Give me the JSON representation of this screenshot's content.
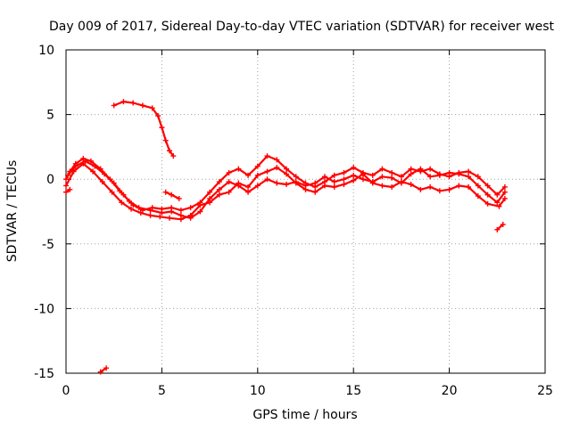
{
  "chart_data": {
    "type": "scatter",
    "title": "Day 009 of 2017, Sidereal Day-to-day VTEC variation (SDTVAR) for receiver west",
    "xlabel": "GPS time / hours",
    "ylabel": "SDTVAR / TECUs",
    "xlim": [
      0,
      25
    ],
    "ylim": [
      -15,
      10
    ],
    "xticks": [
      0,
      5,
      10,
      15,
      20,
      25
    ],
    "yticks": [
      -15,
      -10,
      -5,
      0,
      5,
      10
    ],
    "grid": true,
    "marker": "plus",
    "series": [
      {
        "name": "receiver west",
        "color": "#ff0000",
        "traces": [
          [
            [
              0.0,
              0.0
            ],
            [
              0.2,
              0.6
            ],
            [
              0.5,
              1.2
            ],
            [
              0.9,
              1.6
            ],
            [
              1.3,
              1.4
            ],
            [
              1.8,
              0.8
            ],
            [
              2.3,
              0.0
            ],
            [
              2.8,
              -0.9
            ],
            [
              3.3,
              -1.7
            ],
            [
              3.8,
              -2.2
            ],
            [
              4.4,
              -2.4
            ],
            [
              5.0,
              -2.6
            ],
            [
              5.5,
              -2.5
            ],
            [
              6.0,
              -2.8
            ],
            [
              6.5,
              -3.0
            ],
            [
              7.0,
              -2.5
            ],
            [
              7.5,
              -1.5
            ],
            [
              8.0,
              -0.8
            ],
            [
              8.5,
              -0.2
            ],
            [
              9.0,
              -0.5
            ],
            [
              9.5,
              -1.0
            ],
            [
              10.0,
              -0.5
            ],
            [
              10.5,
              0.0
            ],
            [
              11.0,
              -0.3
            ],
            [
              11.5,
              -0.4
            ],
            [
              12.0,
              -0.2
            ],
            [
              12.5,
              -0.5
            ],
            [
              13.0,
              -0.3
            ],
            [
              13.5,
              0.2
            ],
            [
              14.0,
              -0.2
            ],
            [
              14.5,
              0.0
            ],
            [
              15.0,
              0.3
            ],
            [
              15.5,
              0.0
            ],
            [
              16.0,
              -0.2
            ],
            [
              16.5,
              0.2
            ],
            [
              17.0,
              0.1
            ],
            [
              17.5,
              -0.3
            ],
            [
              18.0,
              0.4
            ],
            [
              18.5,
              0.8
            ],
            [
              19.0,
              0.2
            ],
            [
              19.5,
              0.3
            ],
            [
              20.0,
              0.5
            ],
            [
              20.5,
              0.4
            ],
            [
              21.0,
              0.2
            ],
            [
              21.5,
              -0.5
            ],
            [
              22.0,
              -1.2
            ],
            [
              22.5,
              -1.8
            ],
            [
              22.9,
              -1.0
            ]
          ],
          [
            [
              0.1,
              0.3
            ],
            [
              0.5,
              1.0
            ],
            [
              1.0,
              1.4
            ],
            [
              1.5,
              1.0
            ],
            [
              2.0,
              0.4
            ],
            [
              2.5,
              -0.3
            ],
            [
              3.0,
              -1.2
            ],
            [
              3.5,
              -2.0
            ],
            [
              4.0,
              -2.4
            ],
            [
              4.5,
              -2.2
            ],
            [
              5.0,
              -2.3
            ],
            [
              5.5,
              -2.2
            ],
            [
              6.0,
              -2.4
            ],
            [
              6.5,
              -2.2
            ],
            [
              7.0,
              -1.8
            ],
            [
              7.5,
              -1.0
            ],
            [
              8.0,
              -0.2
            ],
            [
              8.5,
              0.5
            ],
            [
              9.0,
              0.8
            ],
            [
              9.5,
              0.3
            ],
            [
              10.0,
              1.0
            ],
            [
              10.5,
              1.8
            ],
            [
              11.0,
              1.5
            ],
            [
              11.5,
              0.8
            ],
            [
              12.0,
              0.2
            ],
            [
              12.5,
              -0.3
            ],
            [
              13.0,
              -0.6
            ],
            [
              13.5,
              -0.2
            ],
            [
              14.0,
              0.3
            ],
            [
              14.5,
              0.5
            ],
            [
              15.0,
              0.9
            ],
            [
              15.5,
              0.5
            ],
            [
              16.0,
              0.3
            ],
            [
              16.5,
              0.8
            ],
            [
              17.0,
              0.5
            ],
            [
              17.5,
              0.2
            ],
            [
              18.0,
              0.8
            ],
            [
              18.5,
              0.6
            ],
            [
              19.0,
              0.8
            ],
            [
              19.5,
              0.4
            ],
            [
              20.0,
              0.2
            ],
            [
              20.5,
              0.5
            ],
            [
              21.0,
              0.6
            ],
            [
              21.5,
              0.2
            ],
            [
              22.0,
              -0.5
            ],
            [
              22.5,
              -1.2
            ],
            [
              22.9,
              -0.6
            ]
          ],
          [
            [
              0.0,
              -0.5
            ],
            [
              0.4,
              0.6
            ],
            [
              0.9,
              1.2
            ],
            [
              1.4,
              0.6
            ],
            [
              1.9,
              -0.2
            ],
            [
              2.4,
              -1.0
            ],
            [
              2.9,
              -1.8
            ],
            [
              3.4,
              -2.3
            ],
            [
              3.9,
              -2.6
            ],
            [
              4.4,
              -2.8
            ],
            [
              4.9,
              -2.9
            ],
            [
              5.4,
              -3.0
            ],
            [
              6.0,
              -3.1
            ],
            [
              6.5,
              -2.8
            ],
            [
              7.0,
              -2.0
            ],
            [
              7.5,
              -1.8
            ],
            [
              8.0,
              -1.2
            ],
            [
              8.5,
              -1.0
            ],
            [
              9.0,
              -0.3
            ],
            [
              9.5,
              -0.6
            ],
            [
              10.0,
              0.3
            ],
            [
              10.5,
              0.6
            ],
            [
              11.0,
              0.9
            ],
            [
              11.5,
              0.4
            ],
            [
              12.0,
              -0.3
            ],
            [
              12.5,
              -0.8
            ],
            [
              13.0,
              -1.0
            ],
            [
              13.5,
              -0.5
            ],
            [
              14.0,
              -0.6
            ],
            [
              14.5,
              -0.4
            ],
            [
              15.0,
              -0.1
            ],
            [
              15.5,
              0.4
            ],
            [
              16.0,
              -0.3
            ],
            [
              16.5,
              -0.5
            ],
            [
              17.0,
              -0.6
            ],
            [
              17.5,
              -0.2
            ],
            [
              18.0,
              -0.4
            ],
            [
              18.5,
              -0.8
            ],
            [
              19.0,
              -0.6
            ],
            [
              19.5,
              -0.9
            ],
            [
              20.0,
              -0.8
            ],
            [
              20.5,
              -0.5
            ],
            [
              21.0,
              -0.6
            ],
            [
              21.5,
              -1.3
            ],
            [
              22.0,
              -1.9
            ],
            [
              22.6,
              -2.1
            ],
            [
              22.9,
              -1.5
            ]
          ],
          [
            [
              2.5,
              5.7
            ],
            [
              3.0,
              6.0
            ],
            [
              3.5,
              5.9
            ],
            [
              4.0,
              5.7
            ],
            [
              4.5,
              5.5
            ],
            [
              4.8,
              4.9
            ],
            [
              5.0,
              4.0
            ],
            [
              5.2,
              3.0
            ],
            [
              5.4,
              2.2
            ],
            [
              5.6,
              1.8
            ]
          ],
          [
            [
              5.2,
              -1.0
            ],
            [
              5.5,
              -1.2
            ],
            [
              5.9,
              -1.5
            ]
          ],
          [
            [
              0.0,
              -1.0
            ],
            [
              0.2,
              -0.8
            ]
          ],
          [
            [
              22.5,
              -3.9
            ],
            [
              22.8,
              -3.5
            ]
          ],
          [
            [
              1.8,
              -14.9
            ],
            [
              2.1,
              -14.6
            ]
          ]
        ]
      }
    ]
  }
}
